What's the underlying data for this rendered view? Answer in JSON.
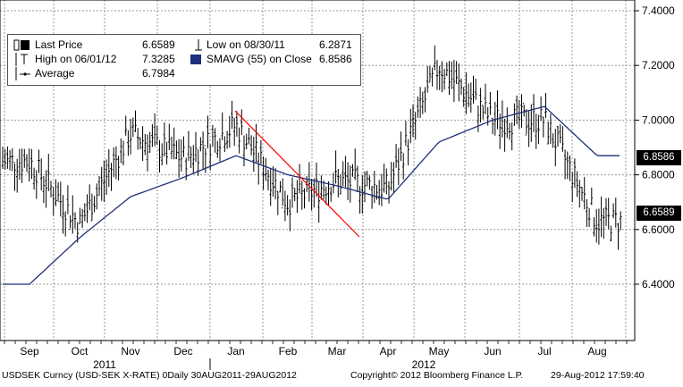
{
  "legend": {
    "last_price_label": "Last Price",
    "last_price_value": "6.6589",
    "high_label": "High on 06/01/12",
    "high_value": "7.3285",
    "average_label": "Average",
    "average_value": "6.7984",
    "low_label": "Low on 08/30/11",
    "low_value": "6.2871",
    "sma_label": "SMAVG (55) on Close",
    "sma_value": "6.8586"
  },
  "tags": {
    "sma": "6.8586",
    "last": "6.6589"
  },
  "footer": {
    "left": "USDSEK Curncy (USD-SEK X-RATE) 0Daily 30AUG2011-29AUG2012",
    "center": "Copyright© 2012 Bloomberg Finance L.P.",
    "right": "29-Aug-2012 17:59:40"
  },
  "colors": {
    "price": "#000000",
    "sma": "#1f2f7a",
    "trendline": "#ff0000",
    "tag_background": "#000000"
  },
  "chart_data": {
    "type": "line",
    "title": "",
    "xlabel": "",
    "ylabel": "",
    "ylim": [
      6.2,
      7.4
    ],
    "y_ticks": [
      "7.4000",
      "7.2000",
      "7.0000",
      "6.8000",
      "6.6000",
      "6.4000"
    ],
    "grid": true,
    "legend_position": "top-left",
    "x_month_labels": [
      "Sep",
      "Oct",
      "Nov",
      "Dec",
      "Jan",
      "Feb",
      "Mar",
      "Apr",
      "May",
      "Jun",
      "Jul",
      "Aug"
    ],
    "x_year_labels": [
      "2011",
      "2012"
    ],
    "series": [
      {
        "name": "Last Price",
        "monthly_close": [
          6.85,
          6.62,
          6.95,
          6.86,
          6.98,
          6.7,
          6.78,
          6.75,
          7.2,
          7.0,
          7.0,
          6.63
        ],
        "last": 6.6589
      },
      {
        "name": "SMAVG (55) on Close",
        "monthly_value": [
          6.4,
          6.57,
          6.72,
          6.79,
          6.87,
          6.8,
          6.76,
          6.71,
          6.92,
          7.0,
          7.05,
          6.87
        ],
        "last": 6.8586
      }
    ],
    "high": {
      "value": 7.3285,
      "date": "06/01/12"
    },
    "low": {
      "value": 6.2871,
      "date": "08/30/11"
    },
    "average": 6.7984
  }
}
